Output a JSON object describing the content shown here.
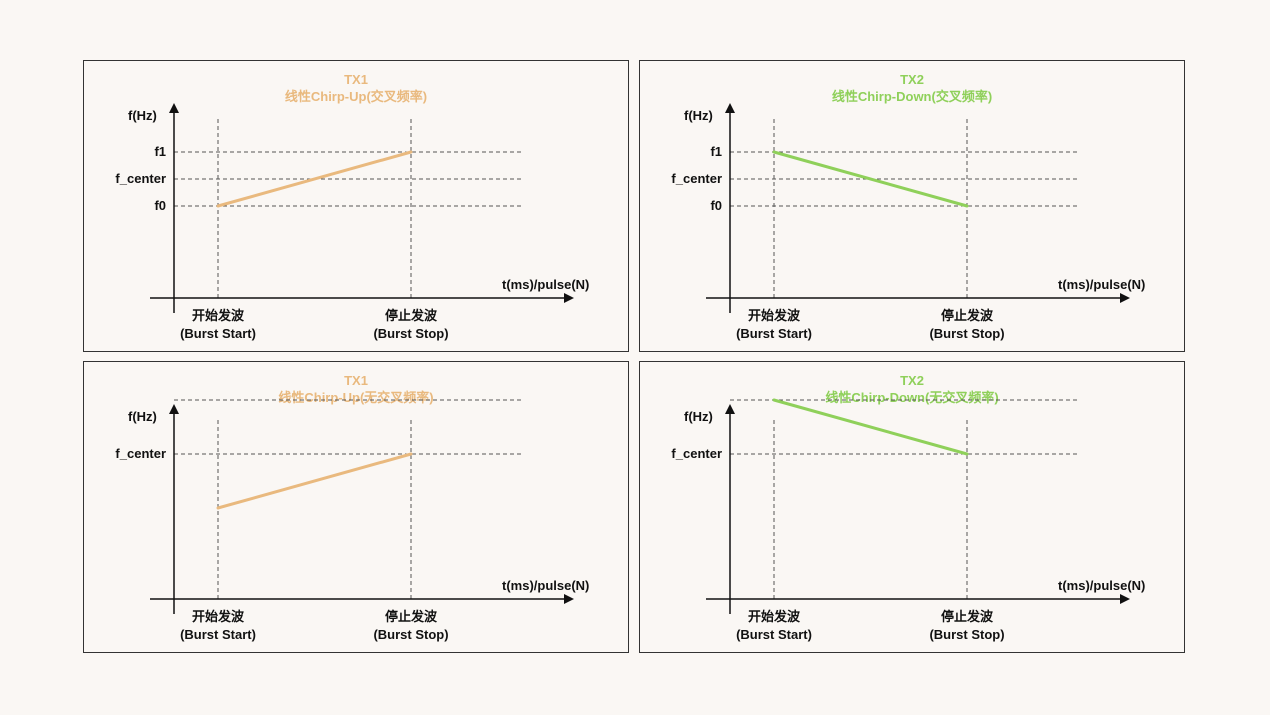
{
  "colors": {
    "tx1": "#e9b97e",
    "tx2": "#8fd05a",
    "axis": "#111111",
    "grid": "#555555"
  },
  "panels": [
    {
      "id": "tx1-cross",
      "title": "TX1",
      "subtitle": "线性Chirp-Up(交叉频率)",
      "color_key": "tx1",
      "y_axis_label": "f(Hz)",
      "x_axis_label": "t(ms)/pulse(N)",
      "y_levels": [
        {
          "label": "f1",
          "value": 2
        },
        {
          "label": "f_center",
          "value": 1
        },
        {
          "label": "f0",
          "value": 0
        }
      ],
      "x_ticks": [
        {
          "line1": "开始发波",
          "line2": "(Burst Start)"
        },
        {
          "line1": "停止发波",
          "line2": "(Burst Stop)"
        }
      ],
      "chirp": {
        "start": 0,
        "end": 2
      }
    },
    {
      "id": "tx2-cross",
      "title": "TX2",
      "subtitle": "线性Chirp-Down(交叉频率)",
      "color_key": "tx2",
      "y_axis_label": "f(Hz)",
      "x_axis_label": "t(ms)/pulse(N)",
      "y_levels": [
        {
          "label": "f1",
          "value": 2
        },
        {
          "label": "f_center",
          "value": 1
        },
        {
          "label": "f0",
          "value": 0
        }
      ],
      "x_ticks": [
        {
          "line1": "开始发波",
          "line2": "(Burst Start)"
        },
        {
          "line1": "停止发波",
          "line2": "(Burst Stop)"
        }
      ],
      "chirp": {
        "start": 2,
        "end": 0
      }
    },
    {
      "id": "tx1-nocross",
      "title": "TX1",
      "subtitle": "线性Chirp-Up(无交叉频率)",
      "color_key": "tx1",
      "y_axis_label": "f(Hz)",
      "x_axis_label": "t(ms)/pulse(N)",
      "y_levels": [
        {
          "label": "",
          "value": 2
        },
        {
          "label": "f_center",
          "value": 1
        }
      ],
      "x_ticks": [
        {
          "line1": "开始发波",
          "line2": "(Burst Start)"
        },
        {
          "line1": "停止发波",
          "line2": "(Burst Stop)"
        }
      ],
      "chirp": {
        "start": 0,
        "end": 1
      }
    },
    {
      "id": "tx2-nocross",
      "title": "TX2",
      "subtitle": "线性Chirp-Down(无交叉频率)",
      "color_key": "tx2",
      "y_axis_label": "f(Hz)",
      "x_axis_label": "t(ms)/pulse(N)",
      "y_levels": [
        {
          "label": "",
          "value": 2
        },
        {
          "label": "f_center",
          "value": 1
        }
      ],
      "x_ticks": [
        {
          "line1": "开始发波",
          "line2": "(Burst Start)"
        },
        {
          "line1": "停止发波",
          "line2": "(Burst Stop)"
        }
      ],
      "chirp": {
        "start": 2,
        "end": 1
      }
    }
  ]
}
